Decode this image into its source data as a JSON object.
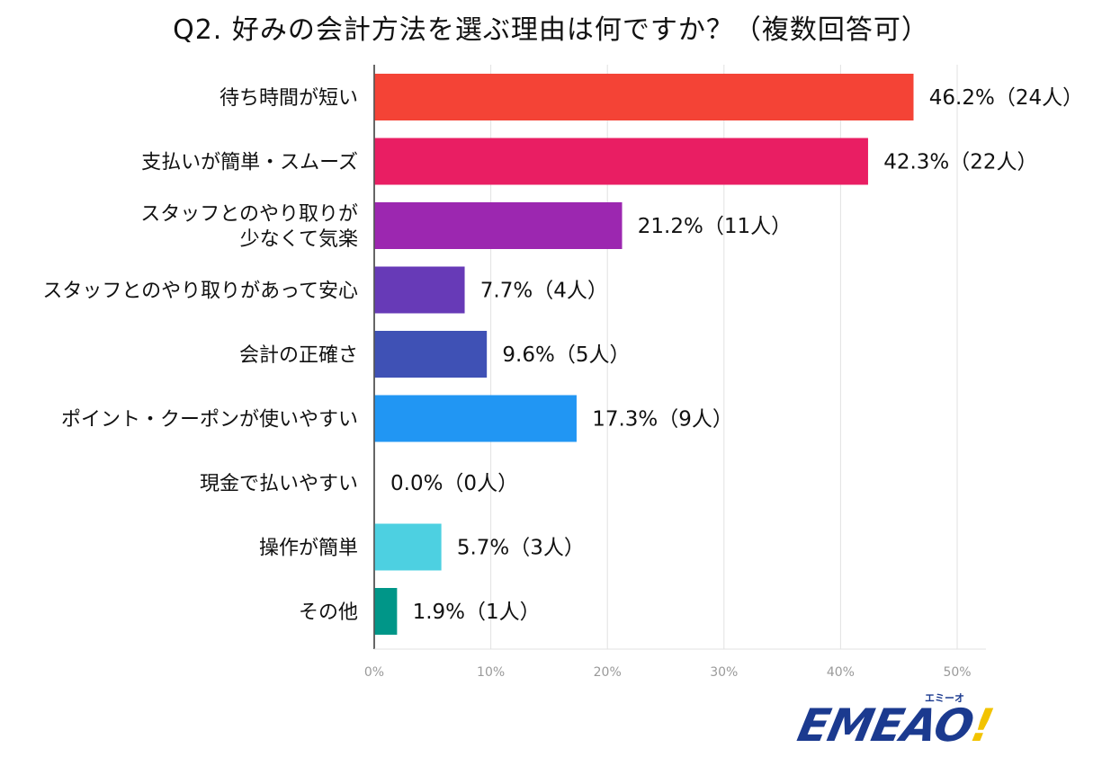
{
  "title": "Q2. 好みの会計方法を選ぶ理由は何ですか？（複数回答可）",
  "logo": {
    "main": "EMEAO",
    "bang": "!",
    "sub": "エミーオ"
  },
  "chart_data": {
    "type": "bar",
    "orientation": "horizontal",
    "title": "Q2. 好みの会計方法を選ぶ理由は何ですか？（複数回答可）",
    "xlim": [
      0,
      50
    ],
    "x_ticks": [
      "0%",
      "10%",
      "20%",
      "30%",
      "40%",
      "50%"
    ],
    "grid": true,
    "legend": "none",
    "categories": [
      [
        "待ち時間が短い"
      ],
      [
        "支払いが簡単・スムーズ"
      ],
      [
        "スタッフとのやり取りが",
        "少なくて気楽"
      ],
      [
        "スタッフとのやり取りがあって安心"
      ],
      [
        "会計の正確さ"
      ],
      [
        "ポイント・クーポンが使いやすい"
      ],
      [
        "現金で払いやすい"
      ],
      [
        "操作が簡単"
      ],
      [
        "その他"
      ]
    ],
    "values": [
      46.2,
      42.3,
      21.2,
      7.7,
      9.6,
      17.3,
      0.0,
      5.7,
      1.9
    ],
    "counts": [
      24,
      22,
      11,
      4,
      5,
      9,
      0,
      3,
      1
    ],
    "value_labels": [
      "46.2%（24人）",
      "42.3%（22人）",
      "21.2%（11人）",
      "7.7%（4人）",
      "9.6%（5人）",
      "17.3%（9人）",
      "0.0%（0人）",
      "5.7%（3人）",
      "1.9%（1人）"
    ],
    "colors": [
      "#f44336",
      "#e91e63",
      "#9c27b0",
      "#673ab7",
      "#3f51b5",
      "#2196f3",
      "#03a9f4",
      "#4dd0e1",
      "#009688"
    ]
  }
}
